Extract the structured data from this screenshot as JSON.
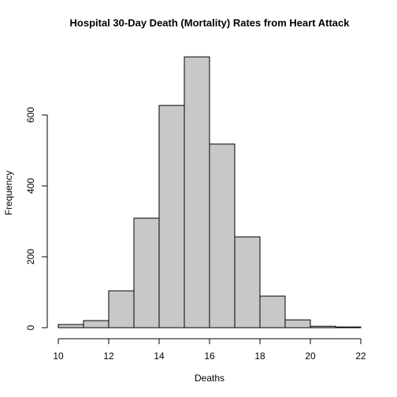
{
  "chart_data": {
    "type": "histogram",
    "title": "Hospital 30-Day Death (Mortality) Rates from Heart Attack",
    "x_label": "Deaths",
    "y_label": "Frequency",
    "bins": [
      10,
      11,
      12,
      13,
      14,
      15,
      16,
      17,
      18,
      19,
      20,
      21,
      22
    ],
    "values": [
      9,
      20,
      104,
      309,
      627,
      764,
      518,
      256,
      89,
      22,
      4,
      2
    ],
    "color": "#c8c8c8",
    "xlim": [
      10,
      22
    ],
    "xticks": [
      10,
      12,
      14,
      16,
      18,
      20,
      22
    ],
    "ylim": [
      0,
      794
    ],
    "yticks": [
      0,
      200,
      400,
      600
    ]
  }
}
